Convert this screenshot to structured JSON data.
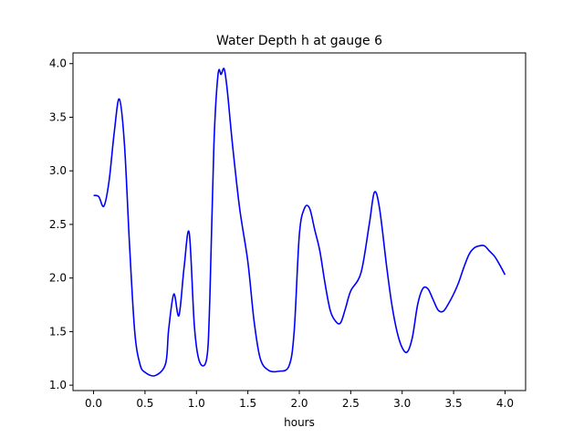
{
  "chart_data": {
    "type": "line",
    "title": "Water Depth h at gauge 6",
    "xlabel": "hours",
    "ylabel": "",
    "xlim": [
      -0.2,
      4.2
    ],
    "ylim": [
      0.95,
      4.1
    ],
    "xticks": [
      0.0,
      0.5,
      1.0,
      1.5,
      2.0,
      2.5,
      3.0,
      3.5,
      4.0
    ],
    "xtick_labels": [
      "0.0",
      "0.5",
      "1.0",
      "1.5",
      "2.0",
      "2.5",
      "3.0",
      "3.5",
      "4.0"
    ],
    "yticks": [
      1.0,
      1.5,
      2.0,
      2.5,
      3.0,
      3.5,
      4.0
    ],
    "ytick_labels": [
      "1.0",
      "1.5",
      "2.0",
      "2.5",
      "3.0",
      "3.5",
      "4.0"
    ],
    "grid": false,
    "legend": false,
    "series": [
      {
        "color": "#0000ff",
        "x": [
          0.0,
          0.05,
          0.1,
          0.15,
          0.2,
          0.25,
          0.3,
          0.35,
          0.4,
          0.45,
          0.5,
          0.6,
          0.7,
          0.73,
          0.78,
          0.83,
          0.88,
          0.93,
          0.98,
          1.03,
          1.1,
          1.13,
          1.17,
          1.21,
          1.24,
          1.27,
          1.3,
          1.35,
          1.42,
          1.5,
          1.56,
          1.62,
          1.7,
          1.8,
          1.9,
          1.95,
          2.0,
          2.05,
          2.1,
          2.15,
          2.2,
          2.25,
          2.3,
          2.35,
          2.4,
          2.45,
          2.5,
          2.6,
          2.68,
          2.73,
          2.78,
          2.85,
          2.9,
          2.95,
          3.0,
          3.05,
          3.1,
          3.15,
          3.2,
          3.25,
          3.3,
          3.35,
          3.4,
          3.45,
          3.5,
          3.55,
          3.6,
          3.65,
          3.7,
          3.75,
          3.8,
          3.85,
          3.9,
          3.95,
          4.0
        ],
        "y": [
          2.77,
          2.76,
          2.67,
          2.9,
          3.35,
          3.67,
          3.25,
          2.3,
          1.5,
          1.2,
          1.12,
          1.09,
          1.2,
          1.52,
          1.85,
          1.65,
          2.1,
          2.42,
          1.55,
          1.22,
          1.25,
          1.8,
          3.25,
          3.9,
          3.9,
          3.95,
          3.75,
          3.25,
          2.65,
          2.15,
          1.6,
          1.25,
          1.14,
          1.13,
          1.18,
          1.5,
          2.4,
          2.65,
          2.65,
          2.45,
          2.25,
          1.95,
          1.7,
          1.6,
          1.58,
          1.72,
          1.88,
          2.05,
          2.5,
          2.8,
          2.65,
          2.1,
          1.75,
          1.5,
          1.35,
          1.31,
          1.45,
          1.75,
          1.9,
          1.9,
          1.8,
          1.7,
          1.69,
          1.76,
          1.85,
          1.96,
          2.1,
          2.22,
          2.28,
          2.3,
          2.3,
          2.25,
          2.2,
          2.12,
          2.03
        ]
      }
    ]
  }
}
